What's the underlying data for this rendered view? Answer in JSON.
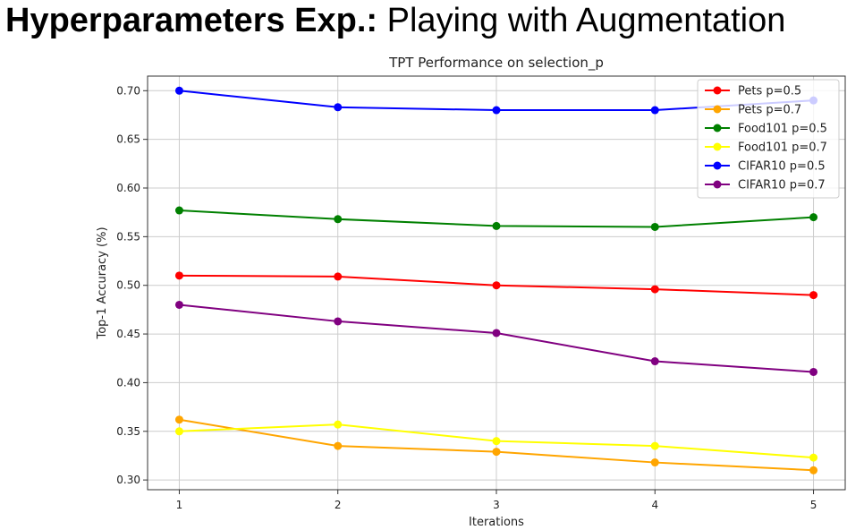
{
  "slide": {
    "title_bold": "Hyperparameters Exp.:",
    "title_rest": "Playing with Augmentation"
  },
  "chart_data": {
    "type": "line",
    "title": "TPT Performance on selection_p",
    "xlabel": "Iterations",
    "ylabel": "Top-1 Accuracy (%)",
    "x": [
      1,
      2,
      3,
      4,
      5
    ],
    "xlim": [
      0.8,
      5.2
    ],
    "ylim": [
      0.29,
      0.715
    ],
    "yticks": [
      0.3,
      0.35,
      0.4,
      0.45,
      0.5,
      0.55,
      0.6,
      0.65,
      0.7
    ],
    "ytick_labels": [
      "0.30",
      "0.35",
      "0.40",
      "0.45",
      "0.50",
      "0.55",
      "0.60",
      "0.65",
      "0.70"
    ],
    "xtick_labels": [
      "1",
      "2",
      "3",
      "4",
      "5"
    ],
    "grid": true,
    "legend_position": "top-right",
    "series": [
      {
        "name": "Pets p=0.5",
        "color": "#ff0000",
        "values": [
          0.51,
          0.509,
          0.5,
          0.496,
          0.49
        ]
      },
      {
        "name": "Pets p=0.7",
        "color": "#ffa500",
        "values": [
          0.362,
          0.335,
          0.329,
          0.318,
          0.31
        ]
      },
      {
        "name": "Food101 p=0.5",
        "color": "#008000",
        "values": [
          0.577,
          0.568,
          0.561,
          0.56,
          0.57
        ]
      },
      {
        "name": "Food101 p=0.7",
        "color": "#ffff00",
        "values": [
          0.35,
          0.357,
          0.34,
          0.335,
          0.323
        ]
      },
      {
        "name": "CIFAR10 p=0.5",
        "color": "#0000ff",
        "values": [
          0.7,
          0.683,
          0.68,
          0.68,
          0.69
        ]
      },
      {
        "name": "CIFAR10 p=0.7",
        "color": "#800080",
        "values": [
          0.48,
          0.463,
          0.451,
          0.422,
          0.411
        ]
      }
    ]
  }
}
